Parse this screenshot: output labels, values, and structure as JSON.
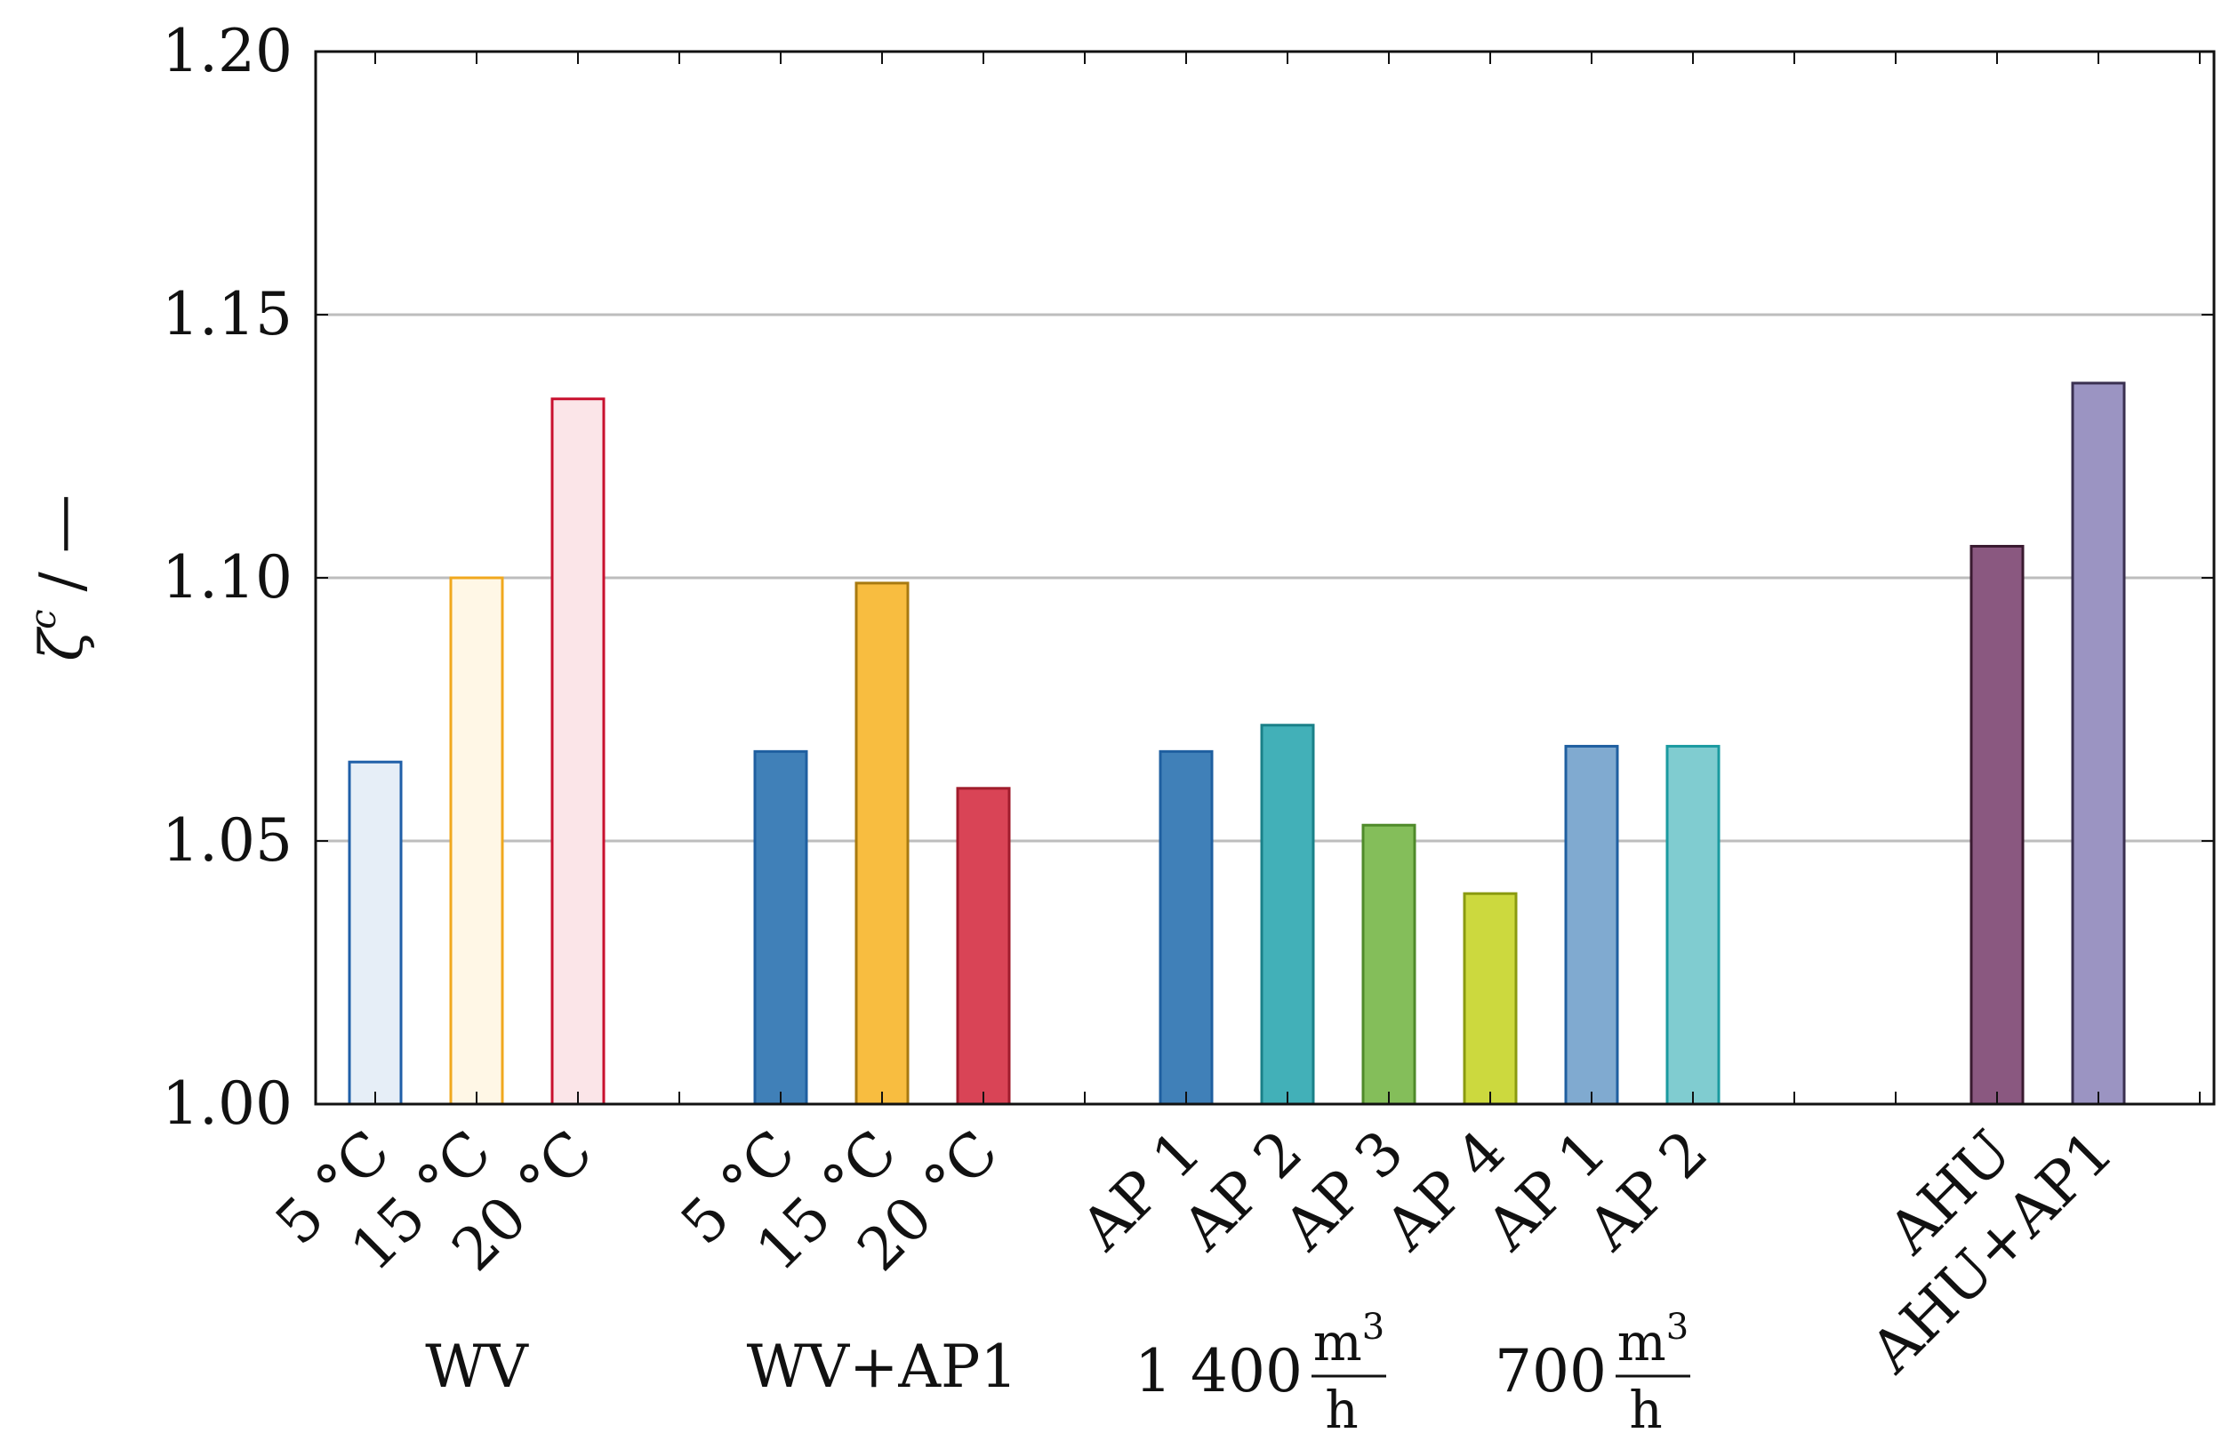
{
  "chart_data": {
    "type": "bar",
    "title": "",
    "xlabel": "",
    "ylabel": "ζ",
    "ylabel_superscript": "c",
    "ylabel_unit": "/ —",
    "ylim": [
      1.0,
      1.2
    ],
    "yticks": [
      "1.00",
      "1.05",
      "1.10",
      "1.15",
      "1.20"
    ],
    "grid": "horizontal",
    "groups": [
      {
        "label": "WV",
        "bars": [
          {
            "label": "5 °C",
            "value": 1.065,
            "fill": "#e6eef7",
            "stroke": "#1f5fa8"
          },
          {
            "label": "15 °C",
            "value": 1.1,
            "fill": "#fff7e6",
            "stroke": "#f0a81e"
          },
          {
            "label": "20 °C",
            "value": 1.134,
            "fill": "#fbe5e8",
            "stroke": "#c8102e"
          }
        ]
      },
      {
        "label": "WV+AP1",
        "bars": [
          {
            "label": "5 °C",
            "value": 1.067,
            "fill": "#4080b8",
            "stroke": "#1f5fa0"
          },
          {
            "label": "15 °C",
            "value": 1.099,
            "fill": "#f8bd40",
            "stroke": "#a87a10"
          },
          {
            "label": "20 °C",
            "value": 1.06,
            "fill": "#d94456",
            "stroke": "#a01c2c"
          }
        ]
      },
      {
        "label": "1 400",
        "label_unit_num": "m",
        "label_unit_sup": "3",
        "label_unit_den": "h",
        "bars": [
          {
            "label": "AP 1",
            "value": 1.067,
            "fill": "#4080b8",
            "stroke": "#1f5fa0"
          },
          {
            "label": "AP 2",
            "value": 1.072,
            "fill": "#42b0b8",
            "stroke": "#1a8088"
          },
          {
            "label": "AP 3",
            "value": 1.053,
            "fill": "#84be5a",
            "stroke": "#4f8a2a"
          },
          {
            "label": "AP 4",
            "value": 1.04,
            "fill": "#ccd93e",
            "stroke": "#8a9a10"
          }
        ]
      },
      {
        "label": "700",
        "label_unit_num": "m",
        "label_unit_sup": "3",
        "label_unit_den": "h",
        "bars": [
          {
            "label": "AP 1",
            "value": 1.068,
            "fill": "#80aad0",
            "stroke": "#1f5fa0"
          },
          {
            "label": "AP 2",
            "value": 1.068,
            "fill": "#80ccd0",
            "stroke": "#1a9aa0"
          }
        ]
      },
      {
        "label": "",
        "bars": [
          {
            "label": "AHU",
            "value": 1.106,
            "fill": "#8a5880",
            "stroke": "#3a1a30"
          },
          {
            "label": "AHU+AP1",
            "value": 1.137,
            "fill": "#9b94c2",
            "stroke": "#3a3050"
          }
        ]
      }
    ]
  }
}
